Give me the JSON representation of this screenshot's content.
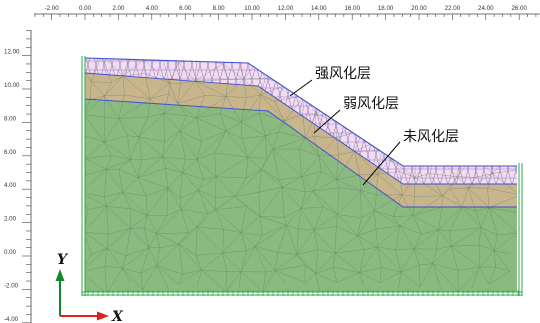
{
  "ruler_top": {
    "labels": [
      "-2.00",
      "0.00",
      "2.00",
      "4.00",
      "6.00",
      "8.00",
      "10.00",
      "12.00",
      "14.00",
      "16.00",
      "18.00",
      "20.00",
      "22.00",
      "24.00",
      "26.00"
    ],
    "values": [
      -2,
      0,
      2,
      4,
      6,
      8,
      10,
      12,
      14,
      16,
      18,
      20,
      22,
      24,
      26
    ]
  },
  "ruler_left": {
    "labels": [
      "12.00",
      "10.00",
      "8.00",
      "6.00",
      "4.00",
      "2.00",
      "0.00",
      "-2.00",
      "-4.00"
    ],
    "values": [
      12,
      10,
      8,
      6,
      4,
      2,
      0,
      -2,
      -4
    ]
  },
  "layers": {
    "strong": {
      "label": "强风化层",
      "fill": "#f2dcf4",
      "stroke": "#3b4fd0"
    },
    "weak": {
      "label": "弱风化层",
      "fill": "#c8b58c"
    },
    "fresh": {
      "label": "未风化层",
      "fill": "#8aba80"
    }
  },
  "axes": {
    "x_label": "X",
    "y_label": "Y",
    "x_color": "#e02020",
    "y_color": "#108a2a"
  },
  "colors": {
    "mesh": "#6c7f6a",
    "boundary_green": "#2fa84a",
    "ruler_line": "#444444"
  }
}
